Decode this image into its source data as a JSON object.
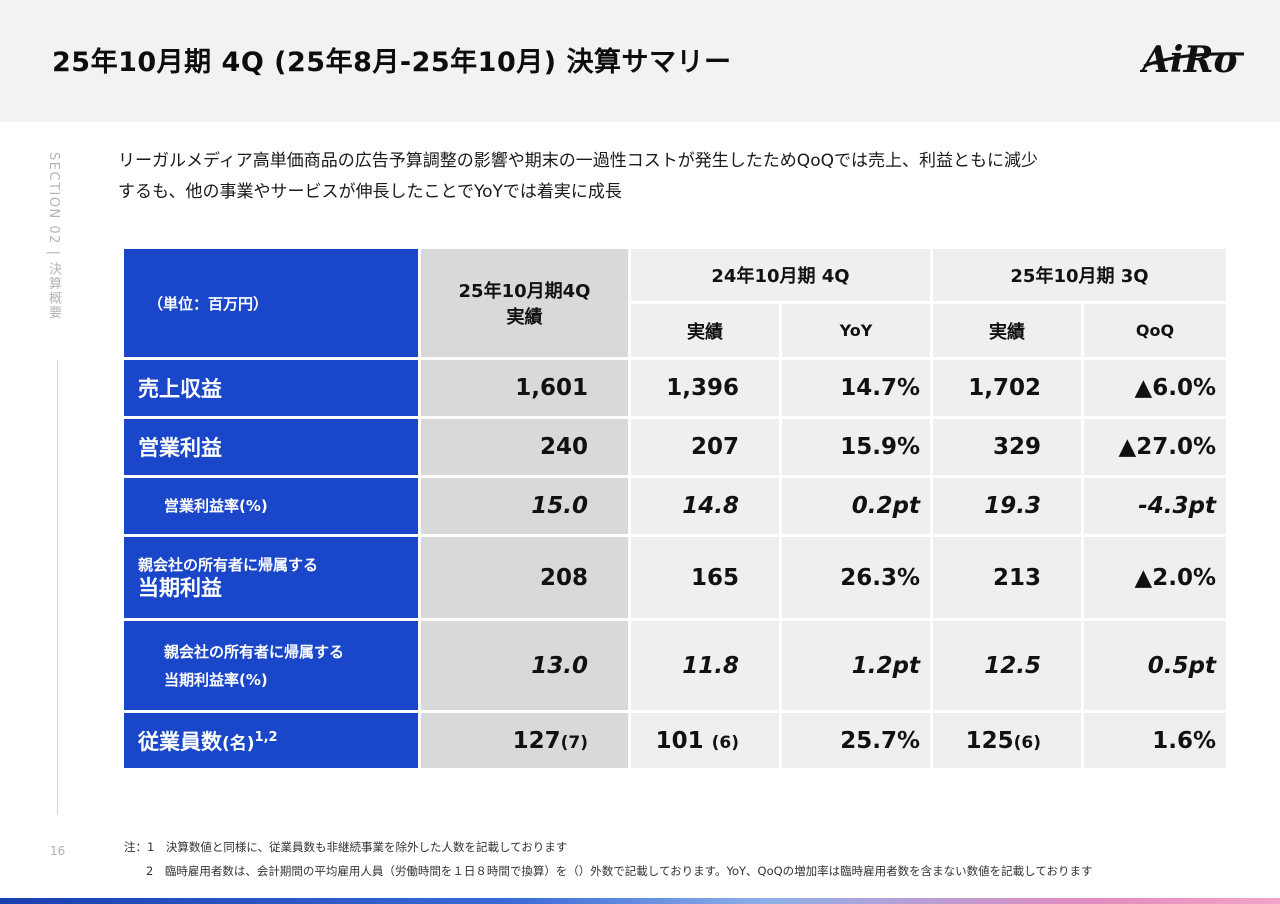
{
  "header": {
    "title": "25年10月期 4Q (25年8月-25年10月) 決算サマリー",
    "logo_text": "AiRo"
  },
  "side": {
    "section_label": "SECTION 02 | 決算概要",
    "page_number": "16"
  },
  "summary_text": [
    "リーガルメディア高単価商品の広告予算調整の影響や期末の一過性コストが発生したためQoQでは売上、利益ともに減少",
    "するも、他の事業やサービスが伸長したことでYoYでは着実に成長"
  ],
  "table": {
    "unit_label": "（単位：百万円）",
    "current_header_line1": "25年10月期4Q",
    "current_header_line2": "実績",
    "prev_year_group": "24年10月期 4Q",
    "prev_quarter_group": "25年10月期 3Q",
    "sub_actual": "実績",
    "sub_yoy": "YoY",
    "sub_qoq": "QoQ",
    "rows": [
      {
        "label": "売上収益",
        "current": "1,601",
        "prev_year": "1,396",
        "yoy": "14.7%",
        "prev_quarter": "1,702",
        "qoq": "▲6.0%"
      },
      {
        "label": "営業利益",
        "current": "240",
        "prev_year": "207",
        "yoy": "15.9%",
        "prev_quarter": "329",
        "qoq": "▲27.0%"
      },
      {
        "label": "営業利益率(%)",
        "current": "15.0",
        "prev_year": "14.8",
        "yoy": "0.2pt",
        "prev_quarter": "19.3",
        "qoq": "-4.3pt"
      },
      {
        "label_small": "親会社の所有者に帰属する",
        "label_big": "当期利益",
        "current": "208",
        "prev_year": "165",
        "yoy": "26.3%",
        "prev_quarter": "213",
        "qoq": "▲2.0%"
      },
      {
        "label_line1": "親会社の所有者に帰属する",
        "label_line2": "当期利益率(%)",
        "current": "13.0",
        "prev_year": "11.8",
        "yoy": "1.2pt",
        "prev_quarter": "12.5",
        "qoq": "0.5pt"
      },
      {
        "label": "従業員数",
        "label_suffix": "(名)",
        "label_sup": "1,2",
        "current": "127",
        "current_paren": "(7)",
        "prev_year": "101",
        "prev_year_paren": "(6)",
        "yoy": "25.7%",
        "prev_quarter": "125",
        "prev_quarter_paren": "(6)",
        "qoq": "1.6%"
      }
    ]
  },
  "notes": [
    "注：1　決算数値と同様に、従業員数も非継続事業を除外した人数を記載しております",
    "2　臨時雇用者数は、会計期間の平均雇用人員（労働時間を１日８時間で換算）を（）外数で記載しております。YoY、QoQの増加率は臨時雇用者数を含まない数値を記載しております"
  ],
  "colors": {
    "accent_blue": "#1a46c9",
    "header_bg": "#f2f2f2",
    "current_col_bg": "#d9d9d9",
    "cell_bg": "#efefef"
  }
}
